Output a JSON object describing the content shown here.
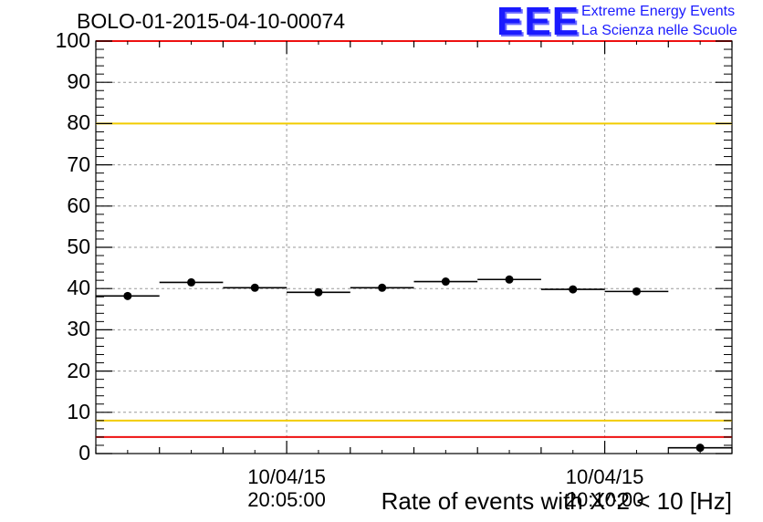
{
  "header": {
    "title": "BOLO-01-2015-04-10-00074",
    "logo_text": "EEE",
    "logo_line1": "Extreme Energy Events",
    "logo_line2": "La Scienza nelle Scuole"
  },
  "colors": {
    "threshold_red": "#ee1111",
    "threshold_yellow": "#f2cc00",
    "grid": "#9a9a9a",
    "data": "#000000",
    "logo": "#1a1aff"
  },
  "chart_data": {
    "type": "scatter",
    "xlabel": "Rate of events with X^2 < 10 [Hz]",
    "ylabel": "",
    "ylim": [
      0,
      100
    ],
    "yticks": [
      0,
      10,
      20,
      30,
      40,
      50,
      60,
      70,
      80,
      90,
      100
    ],
    "xticks": [
      {
        "date": "10/04/15",
        "time": "20:05:00"
      },
      {
        "date": "10/04/15",
        "time": "20:10:00"
      }
    ],
    "grid": true,
    "thresholds": [
      {
        "value": 100,
        "color": "red"
      },
      {
        "value": 80,
        "color": "yellow"
      },
      {
        "value": 8,
        "color": "yellow"
      },
      {
        "value": 4,
        "color": "red"
      }
    ],
    "bin_width_seconds": 60,
    "series": [
      {
        "points": [
          {
            "x": "20:02:30",
            "y": 38.2
          },
          {
            "x": "20:03:30",
            "y": 41.5
          },
          {
            "x": "20:04:30",
            "y": 40.2
          },
          {
            "x": "20:05:30",
            "y": 39.1
          },
          {
            "x": "20:06:30",
            "y": 40.2
          },
          {
            "x": "20:07:30",
            "y": 41.7
          },
          {
            "x": "20:08:30",
            "y": 42.2
          },
          {
            "x": "20:09:30",
            "y": 39.8
          },
          {
            "x": "20:10:30",
            "y": 39.3
          },
          {
            "x": "20:11:30",
            "y": 1.4
          }
        ]
      }
    ]
  }
}
